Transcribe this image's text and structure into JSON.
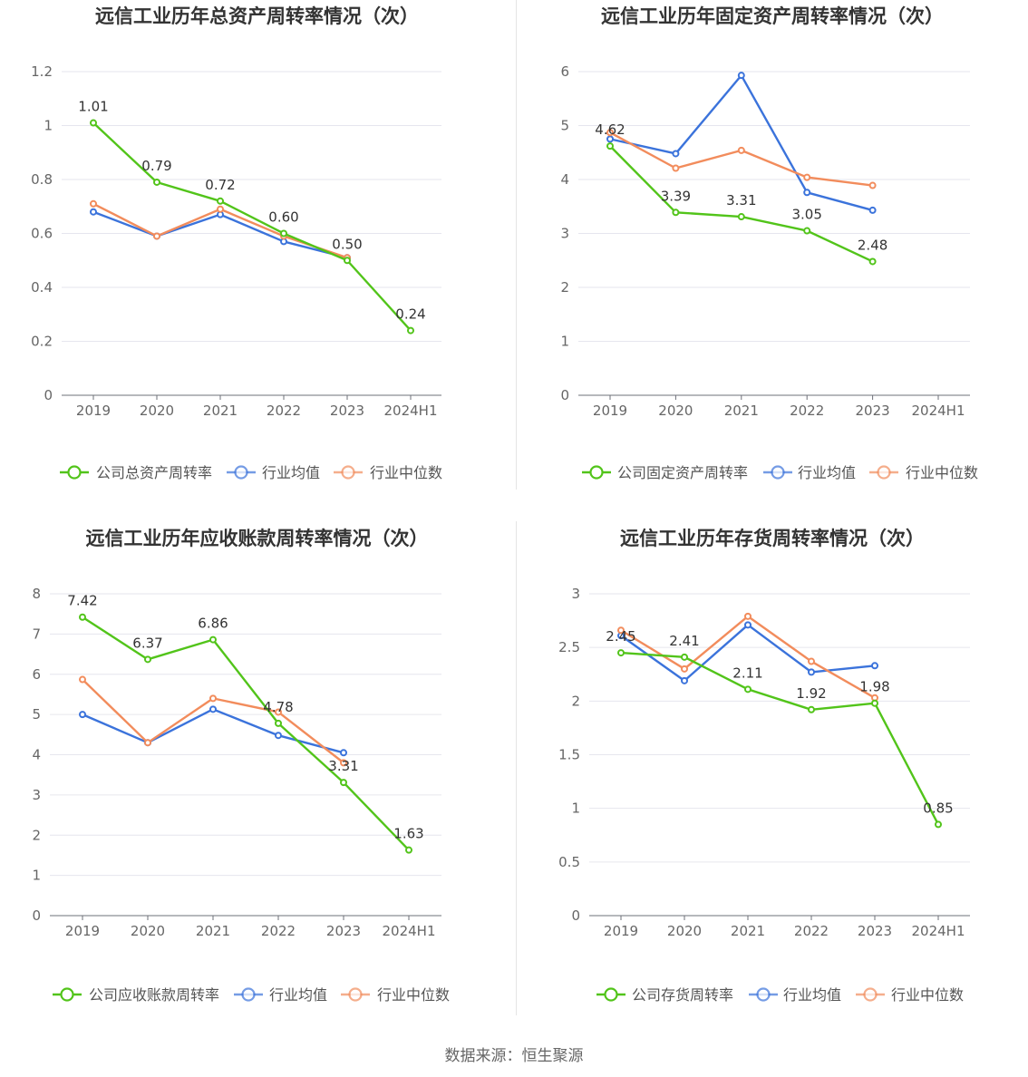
{
  "footer": "数据来源：恒生聚源",
  "colors": {
    "company": "#52c41a",
    "mean": "#3b73db",
    "median": "#f28c5c"
  },
  "legend_marker_icon": "circle-line-icon",
  "chart_data": [
    {
      "type": "line",
      "title": "远信工业历年总资产周转率情况（次）",
      "categories": [
        "2019",
        "2020",
        "2021",
        "2022",
        "2023",
        "2024H1"
      ],
      "ylim": [
        0,
        1.2
      ],
      "yticks": [
        0,
        0.2,
        0.4,
        0.6,
        0.8,
        1,
        1.2
      ],
      "ytick_labels": [
        "0",
        "0.2",
        "0.4",
        "0.6",
        "0.8",
        "1",
        "1.2"
      ],
      "grid": true,
      "legend": "bottom",
      "series": [
        {
          "name": "公司总资产周转率",
          "values": [
            1.01,
            0.79,
            0.72,
            0.6,
            0.5,
            0.24
          ],
          "labels": [
            "1.01",
            "0.79",
            "0.72",
            "0.60",
            "0.50",
            "0.24"
          ]
        },
        {
          "name": "行业均值",
          "values": [
            0.68,
            0.59,
            0.67,
            0.57,
            0.51,
            null
          ]
        },
        {
          "name": "行业中位数",
          "values": [
            0.71,
            0.59,
            0.69,
            0.59,
            0.51,
            null
          ]
        }
      ]
    },
    {
      "type": "line",
      "title": "远信工业历年固定资产周转率情况（次）",
      "categories": [
        "2019",
        "2020",
        "2021",
        "2022",
        "2023",
        "2024H1"
      ],
      "ylim": [
        0,
        6
      ],
      "yticks": [
        0,
        1,
        2,
        3,
        4,
        5,
        6
      ],
      "ytick_labels": [
        "0",
        "1",
        "2",
        "3",
        "4",
        "5",
        "6"
      ],
      "grid": true,
      "legend": "bottom",
      "series": [
        {
          "name": "公司固定资产周转率",
          "values": [
            4.62,
            3.39,
            3.31,
            3.05,
            2.48,
            null
          ],
          "labels": [
            "4.62",
            "3.39",
            "3.31",
            "3.05",
            "2.48",
            ""
          ]
        },
        {
          "name": "行业均值",
          "values": [
            4.75,
            4.48,
            5.93,
            3.76,
            3.43,
            null
          ]
        },
        {
          "name": "行业中位数",
          "values": [
            4.87,
            4.21,
            4.54,
            4.04,
            3.89,
            null
          ]
        }
      ]
    },
    {
      "type": "line",
      "title": "远信工业历年应收账款周转率情况（次）",
      "categories": [
        "2019",
        "2020",
        "2021",
        "2022",
        "2023",
        "2024H1"
      ],
      "ylim": [
        0,
        8
      ],
      "yticks": [
        0,
        1,
        2,
        3,
        4,
        5,
        6,
        7,
        8
      ],
      "ytick_labels": [
        "0",
        "1",
        "2",
        "3",
        "4",
        "5",
        "6",
        "7",
        "8"
      ],
      "grid": true,
      "legend": "bottom",
      "series": [
        {
          "name": "公司应收账款周转率",
          "values": [
            7.42,
            6.37,
            6.86,
            4.78,
            3.31,
            1.63
          ],
          "labels": [
            "7.42",
            "6.37",
            "6.86",
            "4.78",
            "3.31",
            "1.63"
          ]
        },
        {
          "name": "行业均值",
          "values": [
            5.0,
            4.3,
            5.13,
            4.48,
            4.05,
            null
          ]
        },
        {
          "name": "行业中位数",
          "values": [
            5.87,
            4.3,
            5.4,
            5.06,
            3.8,
            null
          ]
        }
      ]
    },
    {
      "type": "line",
      "title": "远信工业历年存货周转率情况（次）",
      "categories": [
        "2019",
        "2020",
        "2021",
        "2022",
        "2023",
        "2024H1"
      ],
      "ylim": [
        0,
        3
      ],
      "yticks": [
        0,
        0.5,
        1,
        1.5,
        2,
        2.5,
        3
      ],
      "ytick_labels": [
        "0",
        "0.5",
        "1",
        "1.5",
        "2",
        "2.5",
        "3"
      ],
      "grid": true,
      "legend": "bottom",
      "series": [
        {
          "name": "公司存货周转率",
          "values": [
            2.45,
            2.41,
            2.11,
            1.92,
            1.98,
            0.85
          ],
          "labels": [
            "2.45",
            "2.41",
            "2.11",
            "1.92",
            "1.98",
            "0.85"
          ]
        },
        {
          "name": "行业均值",
          "values": [
            2.61,
            2.19,
            2.71,
            2.27,
            2.33,
            null
          ]
        },
        {
          "name": "行业中位数",
          "values": [
            2.66,
            2.3,
            2.79,
            2.37,
            2.03,
            null
          ]
        }
      ]
    }
  ]
}
